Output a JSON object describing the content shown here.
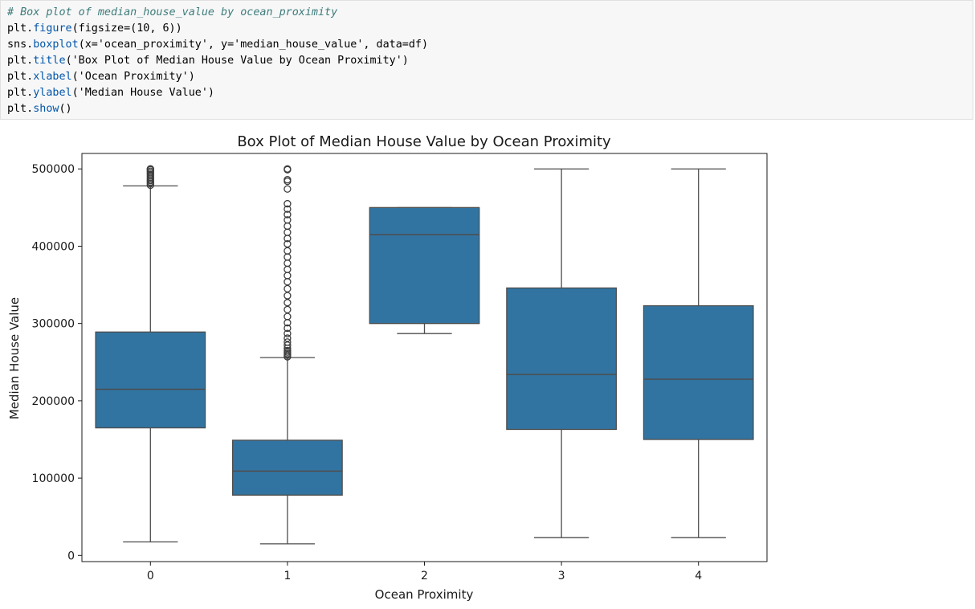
{
  "code": {
    "comment": "# Box plot of median_house_value by ocean_proximity",
    "figure_args": "(figsize=(10, 6))",
    "boxplot_args": "(x='ocean_proximity', y='median_house_value', data=df)",
    "title_arg": "('Box Plot of Median House Value by Ocean Proximity')",
    "xlabel_arg": "('Ocean Proximity')",
    "ylabel_arg": "('Median House Value')"
  },
  "chart_data": {
    "type": "box",
    "title": "Box Plot of Median House Value by Ocean Proximity",
    "xlabel": "Ocean Proximity",
    "ylabel": "Median House Value",
    "categories": [
      "0",
      "1",
      "2",
      "3",
      "4"
    ],
    "ylim": [
      -8000,
      520000
    ],
    "yticks": [
      0,
      100000,
      200000,
      300000,
      400000,
      500000
    ],
    "ytick_labels": [
      "0",
      "100000",
      "200000",
      "300000",
      "400000",
      "500000"
    ],
    "box_color": "#3274a1",
    "boxes": [
      {
        "category": "0",
        "whisker_low": 17500,
        "q1": 165000,
        "median": 215000,
        "q3": 289000,
        "whisker_high": 478000,
        "outliers": [
          479000,
          481000,
          483000,
          485000,
          487000,
          489000,
          491000,
          493000,
          495000,
          497000,
          499000,
          500000,
          500001
        ]
      },
      {
        "category": "1",
        "whisker_low": 15000,
        "q1": 78000,
        "median": 109000,
        "q3": 149000,
        "whisker_high": 256000,
        "outliers": [
          257000,
          259000,
          261000,
          263000,
          265000,
          268000,
          272000,
          276000,
          281000,
          287000,
          294000,
          301000,
          309000,
          318000,
          327000,
          336000,
          345000,
          354000,
          362000,
          370000,
          378000,
          386000,
          394000,
          403000,
          410000,
          418000,
          426000,
          434000,
          441000,
          448000,
          455000,
          474000,
          484000,
          486000,
          499000,
          500000
        ]
      },
      {
        "category": "2",
        "whisker_low": 287000,
        "q1": 300000,
        "median": 415000,
        "q3": 450000,
        "whisker_high": 450000,
        "outliers": []
      },
      {
        "category": "3",
        "whisker_low": 23000,
        "q1": 163000,
        "median": 234000,
        "q3": 346000,
        "whisker_high": 500000,
        "outliers": []
      },
      {
        "category": "4",
        "whisker_low": 23000,
        "q1": 150000,
        "median": 228000,
        "q3": 323000,
        "whisker_high": 500000,
        "outliers": []
      }
    ]
  }
}
